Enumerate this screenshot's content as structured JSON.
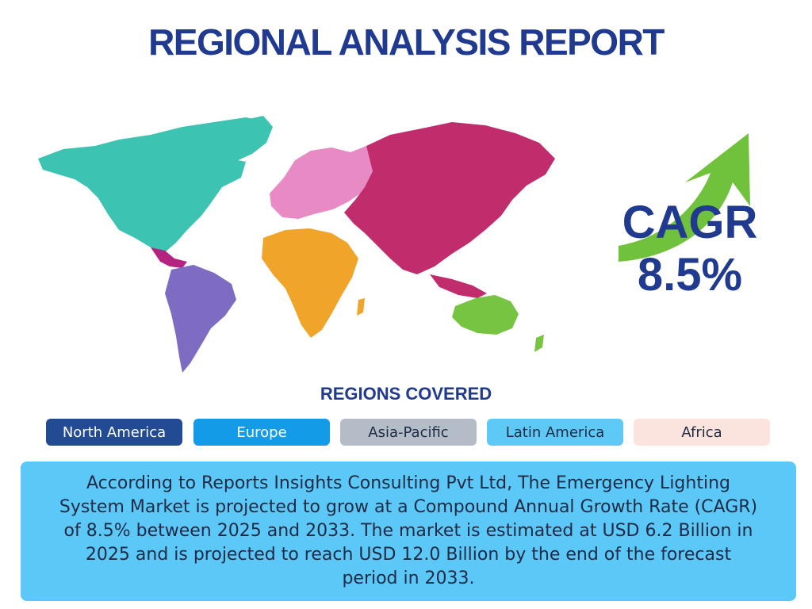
{
  "title": "REGIONAL ANALYSIS REPORT",
  "cagr": {
    "label": "CAGR",
    "value": "8.5%"
  },
  "regions_title": "REGIONS COVERED",
  "regions": [
    {
      "label": "North America",
      "bg": "#234b93",
      "fg": "#ffffff"
    },
    {
      "label": "Europe",
      "bg": "#149be8",
      "fg": "#ffffff"
    },
    {
      "label": "Asia-Pacific",
      "bg": "#b3bcc7",
      "fg": "#1f2a44"
    },
    {
      "label": "Latin America",
      "bg": "#5ec9f5",
      "fg": "#1f2a44"
    },
    {
      "label": "Africa",
      "bg": "#fbe4dd",
      "fg": "#1f2a44"
    }
  ],
  "summary": "According to Reports Insights Consulting Pvt Ltd, The Emergency Lighting System Market is projected to grow at a Compound Annual Growth Rate (CAGR) of 8.5% between 2025 and 2033. The market is estimated at USD 6.2 Billion in 2025 and is projected to reach USD 12.0 Billion by the end of the forecast period in 2033.",
  "map_colors": {
    "north_america": "#3cc3b1",
    "central_america": "#b3237f",
    "south_america": "#7e6cc2",
    "europe": "#e88ac4",
    "asia": "#c02c6c",
    "africa": "#f0a42a",
    "oceania": "#76c442"
  },
  "arrow_color": "#70c23c"
}
